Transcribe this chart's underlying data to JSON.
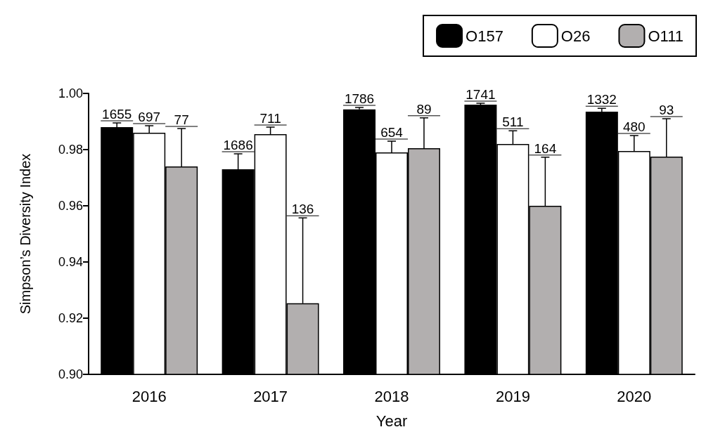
{
  "chart_data": {
    "type": "bar",
    "xlabel": "Year",
    "ylabel": "Simpson’s Diversity Index",
    "categories": [
      "2016",
      "2017",
      "2018",
      "2019",
      "2020"
    ],
    "series": [
      {
        "name": "O157",
        "color": "#000000",
        "values": [
          0.988,
          0.973,
          0.9943,
          0.996,
          0.9935
        ],
        "errors": [
          [
            0.988,
            0.9895
          ],
          [
            0.973,
            0.9785
          ],
          [
            0.9943,
            0.995
          ],
          [
            0.996,
            0.9965
          ],
          [
            0.9935,
            0.9947
          ]
        ]
      },
      {
        "name": "O26",
        "color": "#ffffff",
        "values": [
          0.986,
          0.9855,
          0.979,
          0.982,
          0.9795
        ],
        "errors": [
          [
            0.986,
            0.9885
          ],
          [
            0.9855,
            0.988
          ],
          [
            0.979,
            0.983
          ],
          [
            0.982,
            0.9867
          ],
          [
            0.9795,
            0.985
          ]
        ]
      },
      {
        "name": "O111",
        "color": "#b2afaf",
        "values": [
          0.974,
          0.9253,
          0.9805,
          0.96,
          0.9775
        ],
        "errors": [
          [
            0.974,
            0.9875
          ],
          [
            0.9253,
            0.9557
          ],
          [
            0.9805,
            0.9913
          ],
          [
            0.96,
            0.9773
          ],
          [
            0.9775,
            0.991
          ]
        ]
      }
    ],
    "annotations": [
      "1655",
      "697",
      "77",
      "1686",
      "711",
      "136",
      "1786",
      "654",
      "89",
      "1741",
      "511",
      "164",
      "1332",
      "480",
      "93"
    ],
    "ylim": [
      0.9,
      1.0
    ],
    "yticks": [
      {
        "value": 0.9,
        "label": "0.90"
      },
      {
        "value": 0.92,
        "label": "0.92"
      },
      {
        "value": 0.94,
        "label": "0.94"
      },
      {
        "value": 0.96,
        "label": "0.96"
      },
      {
        "value": 0.98,
        "label": "0.98"
      },
      {
        "value": 1.0,
        "label": "1.00"
      }
    ],
    "grid": false,
    "legend": "top right"
  }
}
